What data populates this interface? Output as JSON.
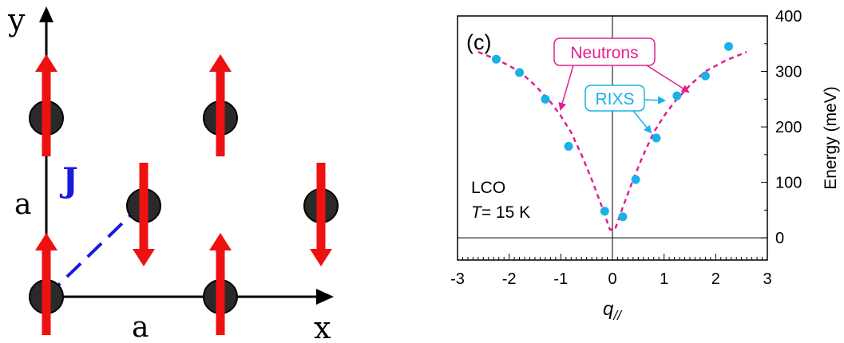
{
  "lattice": {
    "y_axis_label": "y",
    "x_axis_label": "x",
    "lattice_const_left": "a",
    "lattice_const_bottom": "a",
    "exchange_label": "J",
    "colors": {
      "spin": "#ee1111",
      "atom": "#2a2a2a",
      "exchange": "#1a1adc",
      "axis": "#000000"
    },
    "spins": [
      {
        "col": 0,
        "row": 0,
        "dir": "up"
      },
      {
        "col": 1,
        "row": 0,
        "dir": "up"
      },
      {
        "col": 0,
        "row": 1,
        "dir": "down"
      },
      {
        "col": 1,
        "row": 1,
        "dir": "down"
      },
      {
        "col": 0,
        "row": 2,
        "dir": "up"
      },
      {
        "col": 1,
        "row": 2,
        "dir": "up"
      },
      {
        "col": 0,
        "row": 3,
        "dir": "up"
      },
      {
        "col": 1,
        "row": 3,
        "dir": "up"
      }
    ]
  },
  "chart_data": {
    "type": "scatter",
    "panel_label": "(c)",
    "xlabel": "q//",
    "ylabel": "Energy (meV)",
    "xlim": [
      -3,
      3
    ],
    "ylim": [
      -40,
      400
    ],
    "x_ticks": [
      -3,
      -2,
      -1,
      0,
      1,
      2,
      3
    ],
    "y_ticks": [
      0,
      100,
      200,
      300,
      400
    ],
    "annotation_sample": "LCO",
    "annotation_temp_symbol": "T",
    "annotation_temp_value": "= 15 K",
    "colors": {
      "neutrons": "#e0208f",
      "rixs": "#1ab0e8"
    },
    "series": [
      {
        "name": "Neutrons",
        "style": "dashed-line",
        "x": [
          -2.6,
          -2.2,
          -1.8,
          -1.5,
          -1.2,
          -1.0,
          -0.8,
          -0.6,
          -0.4,
          -0.2,
          -0.05,
          0.05,
          0.2,
          0.4,
          0.6,
          0.8,
          1.0,
          1.2,
          1.5,
          1.8,
          2.2,
          2.6
        ],
        "y": [
          335,
          320,
          300,
          275,
          245,
          220,
          190,
          150,
          105,
          55,
          15,
          15,
          55,
          105,
          150,
          190,
          220,
          245,
          275,
          300,
          320,
          335
        ]
      },
      {
        "name": "RIXS",
        "style": "markers",
        "x": [
          -2.25,
          -1.8,
          -1.3,
          -0.85,
          -0.15,
          0.2,
          0.45,
          0.85,
          1.25,
          1.8,
          2.25
        ],
        "y": [
          322,
          298,
          250,
          165,
          48,
          38,
          105,
          180,
          256,
          292,
          345
        ]
      }
    ]
  }
}
